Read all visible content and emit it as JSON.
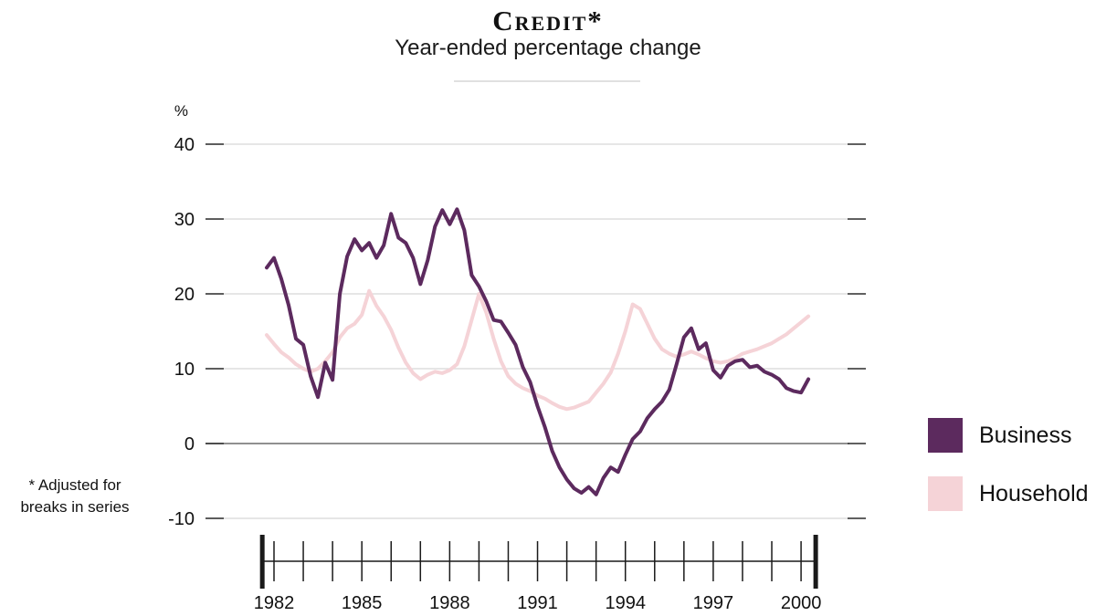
{
  "title": "Credit*",
  "subtitle": "Year-ended percentage change",
  "footnote_line1": "* Adjusted for",
  "footnote_line2": "breaks in series",
  "legend": [
    {
      "label": "Business",
      "color": "#5c2a5e"
    },
    {
      "label": "Household",
      "color": "#f5d3d7"
    }
  ],
  "colors": {
    "gridline": "#d8d8d8",
    "zero_line": "#6b6b6b",
    "tick_dash": "#2b2b2b",
    "axis": "#1a1a1a",
    "text": "#111111"
  },
  "chart_data": {
    "type": "line",
    "title": "Credit*",
    "subtitle": "Year-ended percentage change",
    "ylabel": "%",
    "ylim": [
      -10,
      40
    ],
    "yticks": [
      40,
      30,
      20,
      10,
      0,
      -10
    ],
    "xlim": [
      1981.6,
      2000.5
    ],
    "xticks_minor": [
      1982,
      1983,
      1984,
      1985,
      1986,
      1987,
      1988,
      1989,
      1990,
      1991,
      1992,
      1993,
      1994,
      1995,
      1996,
      1997,
      1998,
      1999,
      2000
    ],
    "xticks_labeled": [
      1982,
      1985,
      1988,
      1991,
      1994,
      1997,
      2000
    ],
    "grid": "horizontal",
    "legend_position": "right",
    "footnote": "* Adjusted for breaks in series",
    "x": [
      1981.75,
      1982.0,
      1982.25,
      1982.5,
      1982.75,
      1983.0,
      1983.25,
      1983.5,
      1983.75,
      1984.0,
      1984.25,
      1984.5,
      1984.75,
      1985.0,
      1985.25,
      1985.5,
      1985.75,
      1986.0,
      1986.25,
      1986.5,
      1986.75,
      1987.0,
      1987.25,
      1987.5,
      1987.75,
      1988.0,
      1988.25,
      1988.5,
      1988.75,
      1989.0,
      1989.25,
      1989.5,
      1989.75,
      1990.0,
      1990.25,
      1990.5,
      1990.75,
      1991.0,
      1991.25,
      1991.5,
      1991.75,
      1992.0,
      1992.25,
      1992.5,
      1992.75,
      1993.0,
      1993.25,
      1993.5,
      1993.75,
      1994.0,
      1994.25,
      1994.5,
      1994.75,
      1995.0,
      1995.25,
      1995.5,
      1995.75,
      1996.0,
      1996.25,
      1996.5,
      1996.75,
      1997.0,
      1997.25,
      1997.5,
      1997.75,
      1998.0,
      1998.25,
      1998.5,
      1998.75,
      1999.0,
      1999.25,
      1999.5,
      1999.75,
      2000.0,
      2000.25
    ],
    "series": [
      {
        "name": "Business",
        "color": "#5c2a5e",
        "values": [
          23.5,
          24.8,
          22.0,
          18.5,
          14.0,
          13.2,
          9.0,
          6.2,
          10.8,
          8.5,
          20.0,
          25.0,
          27.3,
          25.8,
          26.8,
          24.8,
          26.5,
          30.7,
          27.5,
          26.8,
          24.8,
          21.3,
          24.5,
          29.0,
          31.2,
          29.3,
          31.3,
          28.5,
          22.5,
          21.0,
          19.0,
          16.5,
          16.3,
          14.8,
          13.2,
          10.2,
          8.2,
          5.0,
          2.2,
          -1.0,
          -3.2,
          -4.8,
          -6.0,
          -6.6,
          -5.8,
          -6.8,
          -4.6,
          -3.2,
          -3.8,
          -1.5,
          0.6,
          1.6,
          3.4,
          4.6,
          5.6,
          7.2,
          10.6,
          14.2,
          15.4,
          12.6,
          13.4,
          9.8,
          8.8,
          10.4,
          11.0,
          11.2,
          10.2,
          10.4,
          9.6,
          9.2,
          8.6,
          7.4,
          7.0,
          6.8,
          8.6
        ]
      },
      {
        "name": "Household",
        "color": "#f5d3d7",
        "values": [
          14.5,
          13.3,
          12.2,
          11.5,
          10.6,
          10.0,
          9.6,
          10.0,
          11.0,
          12.2,
          14.2,
          15.4,
          16.0,
          17.2,
          20.4,
          18.4,
          17.0,
          15.2,
          12.8,
          10.8,
          9.4,
          8.6,
          9.2,
          9.6,
          9.4,
          9.8,
          10.6,
          13.0,
          16.5,
          20.0,
          17.5,
          14.0,
          11.0,
          9.0,
          8.0,
          7.4,
          7.0,
          6.4,
          6.0,
          5.4,
          4.9,
          4.6,
          4.8,
          5.2,
          5.6,
          6.8,
          8.0,
          9.5,
          12.0,
          15.0,
          18.6,
          18.0,
          16.0,
          14.0,
          12.6,
          12.0,
          11.6,
          11.9,
          12.3,
          11.9,
          11.4,
          11.0,
          10.8,
          11.0,
          11.4,
          12.0,
          12.3,
          12.6,
          13.0,
          13.4,
          14.0,
          14.6,
          15.4,
          16.2,
          17.0
        ]
      }
    ]
  }
}
